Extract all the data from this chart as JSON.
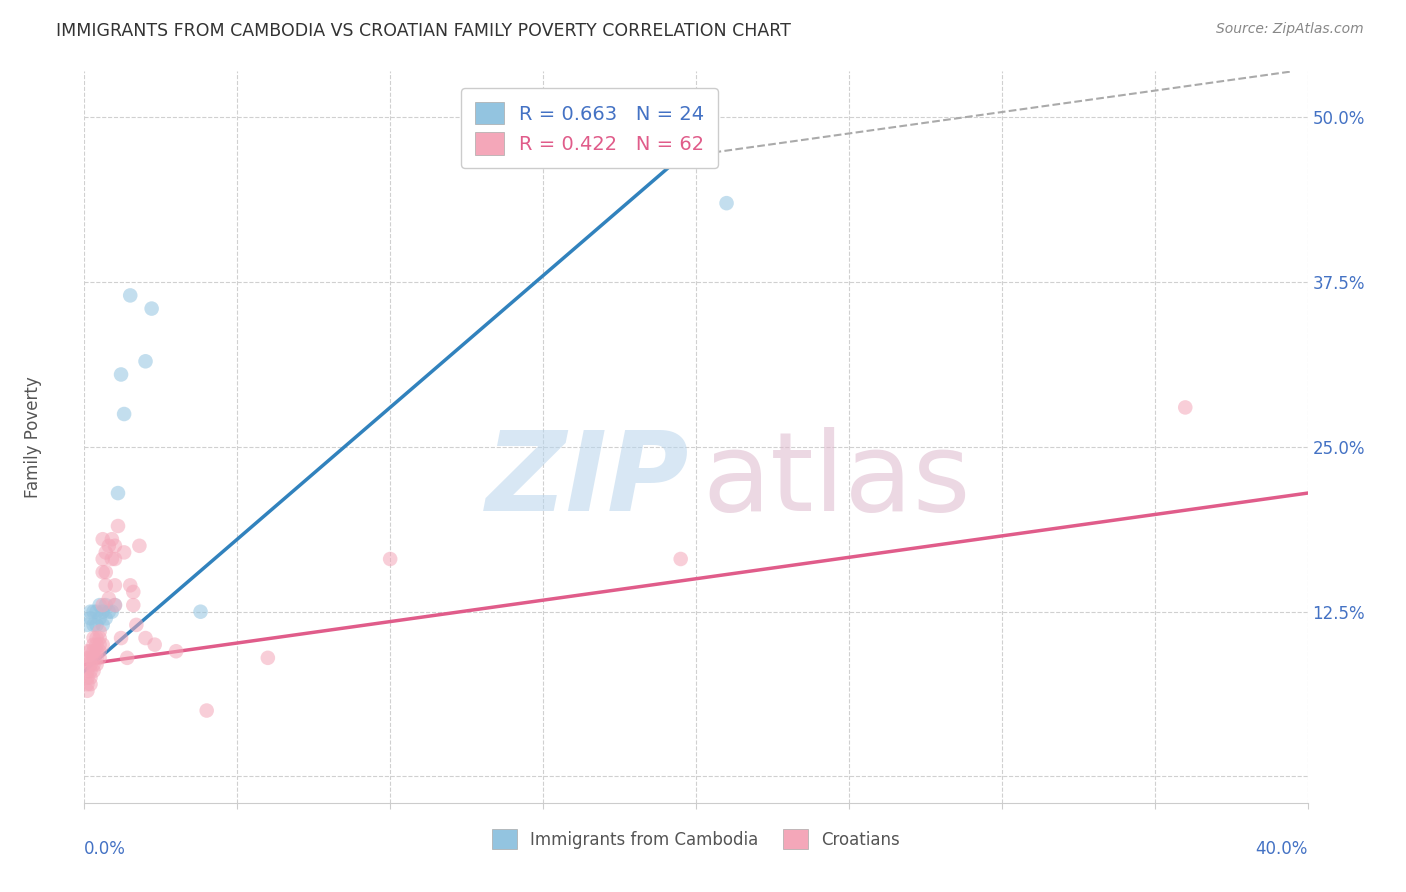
{
  "title": "IMMIGRANTS FROM CAMBODIA VS CROATIAN FAMILY POVERTY CORRELATION CHART",
  "source": "Source: ZipAtlas.com",
  "ylabel": "Family Poverty",
  "yticks": [
    0.0,
    0.125,
    0.25,
    0.375,
    0.5
  ],
  "ytick_labels": [
    "",
    "12.5%",
    "25.0%",
    "37.5%",
    "50.0%"
  ],
  "xtick_positions": [
    0.0,
    0.05,
    0.1,
    0.15,
    0.2,
    0.25,
    0.3,
    0.35,
    0.4
  ],
  "xlim": [
    0.0,
    0.4
  ],
  "ylim": [
    -0.02,
    0.535
  ],
  "legend1_label": "R = 0.663   N = 24",
  "legend2_label": "R = 0.422   N = 62",
  "legend_color1": "#93c4e0",
  "legend_color2": "#f4a7b9",
  "watermark_zip": "ZIP",
  "watermark_atlas": "atlas",
  "blue_scatter_x": [
    0.001,
    0.002,
    0.002,
    0.003,
    0.003,
    0.004,
    0.004,
    0.005,
    0.005,
    0.006,
    0.006,
    0.007,
    0.007,
    0.008,
    0.009,
    0.01,
    0.011,
    0.012,
    0.013,
    0.015,
    0.02,
    0.022,
    0.038,
    0.21
  ],
  "blue_scatter_y": [
    0.115,
    0.125,
    0.12,
    0.125,
    0.115,
    0.125,
    0.115,
    0.13,
    0.12,
    0.125,
    0.115,
    0.13,
    0.12,
    0.125,
    0.125,
    0.13,
    0.215,
    0.305,
    0.275,
    0.365,
    0.315,
    0.355,
    0.125,
    0.435
  ],
  "pink_scatter_x": [
    0.001,
    0.001,
    0.001,
    0.001,
    0.001,
    0.001,
    0.001,
    0.002,
    0.002,
    0.002,
    0.002,
    0.002,
    0.002,
    0.003,
    0.003,
    0.003,
    0.003,
    0.003,
    0.003,
    0.004,
    0.004,
    0.004,
    0.004,
    0.004,
    0.005,
    0.005,
    0.005,
    0.005,
    0.005,
    0.006,
    0.006,
    0.006,
    0.006,
    0.006,
    0.007,
    0.007,
    0.007,
    0.008,
    0.008,
    0.009,
    0.009,
    0.01,
    0.01,
    0.01,
    0.01,
    0.011,
    0.012,
    0.013,
    0.014,
    0.015,
    0.016,
    0.016,
    0.017,
    0.018,
    0.02,
    0.023,
    0.03,
    0.04,
    0.06,
    0.1,
    0.195,
    0.36
  ],
  "pink_scatter_y": [
    0.07,
    0.065,
    0.075,
    0.08,
    0.085,
    0.09,
    0.095,
    0.07,
    0.075,
    0.08,
    0.085,
    0.09,
    0.095,
    0.08,
    0.085,
    0.09,
    0.095,
    0.1,
    0.105,
    0.085,
    0.09,
    0.095,
    0.1,
    0.105,
    0.09,
    0.095,
    0.1,
    0.105,
    0.11,
    0.1,
    0.13,
    0.155,
    0.165,
    0.18,
    0.145,
    0.155,
    0.17,
    0.135,
    0.175,
    0.165,
    0.18,
    0.13,
    0.145,
    0.165,
    0.175,
    0.19,
    0.105,
    0.17,
    0.09,
    0.145,
    0.13,
    0.14,
    0.115,
    0.175,
    0.105,
    0.1,
    0.095,
    0.05,
    0.09,
    0.165,
    0.165,
    0.28
  ],
  "blue_line_x": [
    0.0,
    0.195
  ],
  "blue_line_y": [
    0.08,
    0.47
  ],
  "pink_line_x": [
    0.0,
    0.4
  ],
  "pink_line_y": [
    0.085,
    0.215
  ],
  "dashed_line_x": [
    0.195,
    0.395
  ],
  "dashed_line_y": [
    0.47,
    0.535
  ],
  "scatter_size": 110,
  "scatter_alpha": 0.55,
  "line_blue_color": "#3182bd",
  "line_pink_color": "#e05c8a",
  "background_color": "#ffffff",
  "grid_color": "#d0d0d0",
  "title_color": "#333333",
  "ytick_color": "#4472c4",
  "watermark_color_zip": "#b8d4ec",
  "watermark_color_atlas": "#ddb8cc"
}
